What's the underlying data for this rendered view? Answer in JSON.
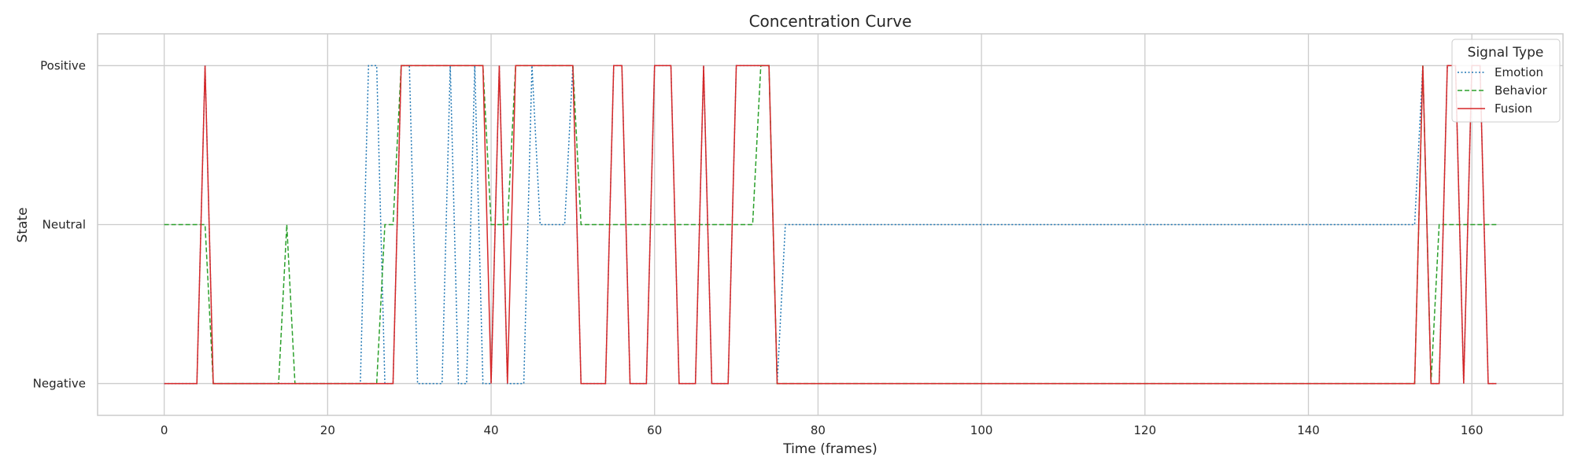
{
  "chart_data": {
    "type": "line",
    "title": "Concentration Curve",
    "xlabel": "Time (frames)",
    "ylabel": "State",
    "xlim": [
      -8.15,
      171.15
    ],
    "ylim": [
      -0.2,
      2.2
    ],
    "x_ticks": [
      0,
      20,
      40,
      60,
      80,
      100,
      120,
      140,
      160
    ],
    "y_ticks": [
      0,
      1,
      2
    ],
    "y_tick_labels": [
      "Negative",
      "Neutral",
      "Positive"
    ],
    "grid": true,
    "legend": {
      "title": "Signal Type",
      "placement": "top-right"
    },
    "x": [
      0,
      1,
      2,
      3,
      4,
      5,
      6,
      7,
      8,
      9,
      10,
      11,
      12,
      13,
      14,
      15,
      16,
      17,
      18,
      19,
      20,
      21,
      22,
      23,
      24,
      25,
      26,
      27,
      28,
      29,
      30,
      31,
      32,
      33,
      34,
      35,
      36,
      37,
      38,
      39,
      40,
      41,
      42,
      43,
      44,
      45,
      46,
      47,
      48,
      49,
      50,
      51,
      52,
      53,
      54,
      55,
      56,
      57,
      58,
      59,
      60,
      61,
      62,
      63,
      64,
      65,
      66,
      67,
      68,
      69,
      70,
      71,
      72,
      73,
      74,
      75,
      76,
      77,
      78,
      79,
      80,
      81,
      82,
      83,
      84,
      85,
      86,
      87,
      88,
      89,
      90,
      91,
      92,
      93,
      94,
      95,
      96,
      97,
      98,
      99,
      100,
      101,
      102,
      103,
      104,
      105,
      106,
      107,
      108,
      109,
      110,
      111,
      112,
      113,
      114,
      115,
      116,
      117,
      118,
      119,
      120,
      121,
      122,
      123,
      124,
      125,
      126,
      127,
      128,
      129,
      130,
      131,
      132,
      133,
      134,
      135,
      136,
      137,
      138,
      139,
      140,
      141,
      142,
      143,
      144,
      145,
      146,
      147,
      148,
      149,
      150,
      151,
      152,
      153,
      154,
      155,
      156,
      157,
      158,
      159,
      160,
      161,
      162,
      163
    ],
    "series": [
      {
        "name": "Emotion",
        "color": "#1f77b4",
        "dash": "dotted",
        "values": [
          0,
          0,
          0,
          0,
          0,
          2,
          0,
          0,
          0,
          0,
          0,
          0,
          0,
          0,
          0,
          0,
          0,
          0,
          0,
          0,
          0,
          0,
          0,
          0,
          0,
          2,
          2,
          0,
          0,
          2,
          2,
          0,
          0,
          0,
          0,
          2,
          0,
          0,
          2,
          0,
          0,
          2,
          0,
          0,
          0,
          2,
          1,
          1,
          1,
          1,
          2,
          0,
          0,
          0,
          0,
          2,
          2,
          0,
          0,
          0,
          2,
          2,
          2,
          0,
          0,
          0,
          2,
          0,
          0,
          0,
          2,
          2,
          2,
          2,
          2,
          0,
          1,
          1,
          1,
          1,
          1,
          1,
          1,
          1,
          1,
          1,
          1,
          1,
          1,
          1,
          1,
          1,
          1,
          1,
          1,
          1,
          1,
          1,
          1,
          1,
          1,
          1,
          1,
          1,
          1,
          1,
          1,
          1,
          1,
          1,
          1,
          1,
          1,
          1,
          1,
          1,
          1,
          1,
          1,
          1,
          1,
          1,
          1,
          1,
          1,
          1,
          1,
          1,
          1,
          1,
          1,
          1,
          1,
          1,
          1,
          1,
          1,
          1,
          1,
          1,
          1,
          1,
          1,
          1,
          1,
          1,
          1,
          1,
          1,
          1,
          1,
          1,
          1,
          1,
          2,
          0,
          0,
          2,
          2,
          0,
          2,
          2,
          0,
          0
        ]
      },
      {
        "name": "Behavior",
        "color": "#2ca02c",
        "dash": "dashed",
        "values": [
          1,
          1,
          1,
          1,
          1,
          1,
          0,
          0,
          0,
          0,
          0,
          0,
          0,
          0,
          0,
          1,
          0,
          0,
          0,
          0,
          0,
          0,
          0,
          0,
          0,
          0,
          0,
          1,
          1,
          2,
          2,
          2,
          2,
          2,
          2,
          2,
          2,
          2,
          2,
          2,
          1,
          1,
          1,
          2,
          2,
          2,
          2,
          2,
          2,
          2,
          2,
          1,
          1,
          1,
          1,
          1,
          1,
          1,
          1,
          1,
          1,
          1,
          1,
          1,
          1,
          1,
          1,
          1,
          1,
          1,
          1,
          1,
          1,
          2,
          2,
          0,
          0,
          0,
          0,
          0,
          0,
          0,
          0,
          0,
          0,
          0,
          0,
          0,
          0,
          0,
          0,
          0,
          0,
          0,
          0,
          0,
          0,
          0,
          0,
          0,
          0,
          0,
          0,
          0,
          0,
          0,
          0,
          0,
          0,
          0,
          0,
          0,
          0,
          0,
          0,
          0,
          0,
          0,
          0,
          0,
          0,
          0,
          0,
          0,
          0,
          0,
          0,
          0,
          0,
          0,
          0,
          0,
          0,
          0,
          0,
          0,
          0,
          0,
          0,
          0,
          0,
          0,
          0,
          0,
          0,
          0,
          0,
          0,
          0,
          0,
          0,
          0,
          0,
          0,
          2,
          0,
          1,
          1,
          1,
          1,
          1,
          1,
          1,
          1
        ]
      },
      {
        "name": "Fusion",
        "color": "#d62728",
        "dash": "solid",
        "values": [
          0,
          0,
          0,
          0,
          0,
          2,
          0,
          0,
          0,
          0,
          0,
          0,
          0,
          0,
          0,
          0,
          0,
          0,
          0,
          0,
          0,
          0,
          0,
          0,
          0,
          0,
          0,
          0,
          0,
          2,
          2,
          2,
          2,
          2,
          2,
          2,
          2,
          2,
          2,
          2,
          0,
          2,
          0,
          2,
          2,
          2,
          2,
          2,
          2,
          2,
          2,
          0,
          0,
          0,
          0,
          2,
          2,
          0,
          0,
          0,
          2,
          2,
          2,
          0,
          0,
          0,
          2,
          0,
          0,
          0,
          2,
          2,
          2,
          2,
          2,
          0,
          0,
          0,
          0,
          0,
          0,
          0,
          0,
          0,
          0,
          0,
          0,
          0,
          0,
          0,
          0,
          0,
          0,
          0,
          0,
          0,
          0,
          0,
          0,
          0,
          0,
          0,
          0,
          0,
          0,
          0,
          0,
          0,
          0,
          0,
          0,
          0,
          0,
          0,
          0,
          0,
          0,
          0,
          0,
          0,
          0,
          0,
          0,
          0,
          0,
          0,
          0,
          0,
          0,
          0,
          0,
          0,
          0,
          0,
          0,
          0,
          0,
          0,
          0,
          0,
          0,
          0,
          0,
          0,
          0,
          0,
          0,
          0,
          0,
          0,
          0,
          0,
          0,
          0,
          2,
          0,
          0,
          2,
          2,
          0,
          2,
          2,
          0,
          0
        ]
      }
    ]
  }
}
